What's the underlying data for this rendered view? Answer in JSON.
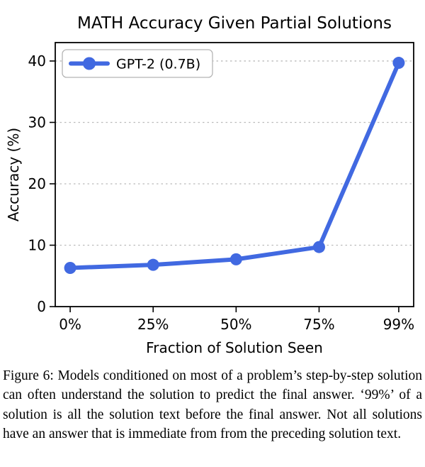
{
  "chart_data": {
    "type": "line",
    "title": "MATH Accuracy Given Partial Solutions",
    "xlabel": "Fraction of Solution Seen",
    "ylabel": "Accuracy (%)",
    "x": [
      0,
      25,
      50,
      75,
      99
    ],
    "x_tick_labels": [
      "0%",
      "25%",
      "50%",
      "75%",
      "99%"
    ],
    "yticks": [
      0,
      10,
      20,
      30,
      40
    ],
    "ylim": [
      0,
      43
    ],
    "grid": "horizontal-dashed",
    "legend_position": "upper left",
    "series": [
      {
        "name": "GPT-2 (0.7B)",
        "values": [
          6.3,
          6.8,
          7.7,
          9.7,
          39.7
        ],
        "color": "#4169e1",
        "marker": "circle"
      }
    ]
  },
  "caption": {
    "text": "Figure 6: Models conditioned on most of a problem’s step-by-step solution can often understand the solution to predict the final answer. ‘99%’ of a solution is all the solution text before the final answer. Not all solutions have an answer that is immediate from from the preceding solution text."
  }
}
